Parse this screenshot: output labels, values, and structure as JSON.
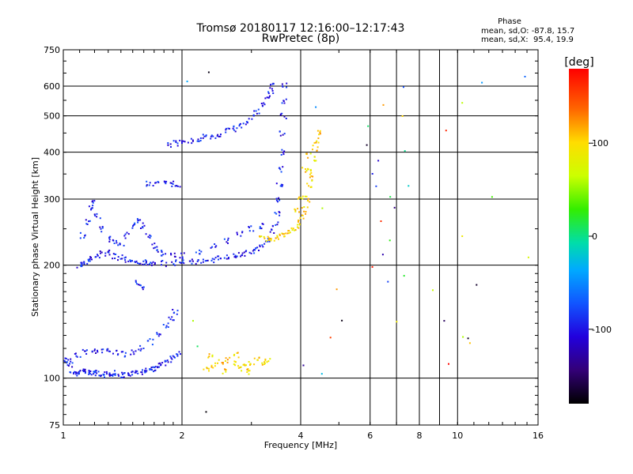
{
  "chart_data": {
    "type": "scatter",
    "title": "Tromsø 20180117 12:16:00–12:17:43",
    "subtitle": "RwPretec (8p)",
    "xlabel": "Frequency [MHz]",
    "ylabel": "Stationary phase Virtual Height [km]",
    "xscale": "log",
    "yscale": "log",
    "xlim": [
      1,
      16
    ],
    "ylim": [
      75,
      750
    ],
    "xticks": [
      1,
      2,
      4,
      6,
      8,
      10,
      16
    ],
    "xtick_labels": [
      "1",
      "2",
      "4",
      "6",
      "8",
      "10",
      "16"
    ],
    "xminor_grid": [
      7,
      9
    ],
    "yticks": [
      75,
      100,
      200,
      300,
      400,
      500,
      600,
      750
    ],
    "ytick_labels": [
      "75",
      "100",
      "200",
      "300",
      "400",
      "500",
      "600",
      "750"
    ],
    "grid": true,
    "phase_stats": {
      "title": "Phase",
      "line_o": "mean, sd,O: -87.8, 15.7",
      "line_x": "mean, sd,X:  95.4, 19.9"
    },
    "colorbar": {
      "label": "[deg]",
      "min": -180,
      "max": 180,
      "ticks": [
        100,
        0,
        -100
      ],
      "tick_labels": [
        "100",
        "0",
        "-100"
      ],
      "position": "right"
    },
    "series": [
      {
        "mode": "O",
        "phase_mean": -87.8,
        "points": [
          [
            1.0,
            112
          ],
          [
            1.03,
            111
          ],
          [
            1.05,
            104
          ],
          [
            1.08,
            103
          ],
          [
            1.1,
            104
          ],
          [
            1.12,
            105
          ],
          [
            1.15,
            103
          ],
          [
            1.18,
            103
          ],
          [
            1.2,
            103
          ],
          [
            1.22,
            104
          ],
          [
            1.25,
            103
          ],
          [
            1.28,
            102
          ],
          [
            1.3,
            103
          ],
          [
            1.33,
            102
          ],
          [
            1.36,
            103
          ],
          [
            1.4,
            102
          ],
          [
            1.44,
            102
          ],
          [
            1.48,
            103
          ],
          [
            1.52,
            103
          ],
          [
            1.56,
            104
          ],
          [
            1.6,
            104
          ],
          [
            1.64,
            105
          ],
          [
            1.68,
            107
          ],
          [
            1.72,
            106
          ],
          [
            1.76,
            108
          ],
          [
            1.8,
            110
          ],
          [
            1.85,
            112
          ],
          [
            1.9,
            114
          ],
          [
            1.95,
            116
          ],
          [
            1.04,
            108
          ],
          [
            1.09,
            115
          ],
          [
            1.14,
            117
          ],
          [
            1.19,
            118
          ],
          [
            1.24,
            119
          ],
          [
            1.3,
            118
          ],
          [
            1.36,
            117
          ],
          [
            1.42,
            116
          ],
          [
            1.5,
            117
          ],
          [
            1.58,
            120
          ],
          [
            1.66,
            125
          ],
          [
            1.74,
            130
          ],
          [
            1.82,
            138
          ],
          [
            1.88,
            145
          ],
          [
            1.92,
            150
          ],
          [
            1.1,
            200
          ],
          [
            1.12,
            202
          ],
          [
            1.15,
            205
          ],
          [
            1.18,
            208
          ],
          [
            1.22,
            212
          ],
          [
            1.26,
            215
          ],
          [
            1.3,
            216
          ],
          [
            1.35,
            212
          ],
          [
            1.4,
            210
          ],
          [
            1.45,
            207
          ],
          [
            1.5,
            205
          ],
          [
            1.55,
            204
          ],
          [
            1.6,
            203
          ],
          [
            1.65,
            202
          ],
          [
            1.7,
            202
          ],
          [
            1.8,
            202
          ],
          [
            1.9,
            203
          ],
          [
            2.0,
            203
          ],
          [
            2.1,
            204
          ],
          [
            2.2,
            205
          ],
          [
            2.3,
            206
          ],
          [
            2.4,
            207
          ],
          [
            2.5,
            208
          ],
          [
            2.6,
            210
          ],
          [
            2.7,
            211
          ],
          [
            2.8,
            213
          ],
          [
            2.9,
            215
          ],
          [
            3.0,
            217
          ],
          [
            3.1,
            220
          ],
          [
            3.2,
            225
          ],
          [
            3.3,
            232
          ],
          [
            3.4,
            245
          ],
          [
            3.45,
            258
          ],
          [
            3.5,
            275
          ],
          [
            3.52,
            300
          ],
          [
            3.54,
            330
          ],
          [
            3.56,
            360
          ],
          [
            3.58,
            400
          ],
          [
            3.6,
            450
          ],
          [
            3.62,
            500
          ],
          [
            3.63,
            550
          ],
          [
            3.64,
            600
          ],
          [
            1.12,
            240
          ],
          [
            1.15,
            260
          ],
          [
            1.18,
            285
          ],
          [
            1.2,
            292
          ],
          [
            1.22,
            270
          ],
          [
            1.25,
            250
          ],
          [
            1.3,
            235
          ],
          [
            1.35,
            230
          ],
          [
            1.4,
            225
          ],
          [
            1.45,
            240
          ],
          [
            1.5,
            255
          ],
          [
            1.55,
            262
          ],
          [
            1.6,
            255
          ],
          [
            1.65,
            240
          ],
          [
            1.7,
            225
          ],
          [
            1.75,
            220
          ],
          [
            1.8,
            215
          ],
          [
            1.9,
            212
          ],
          [
            2.0,
            212
          ],
          [
            2.2,
            218
          ],
          [
            2.4,
            224
          ],
          [
            2.6,
            232
          ],
          [
            2.8,
            242
          ],
          [
            3.0,
            250
          ],
          [
            3.2,
            255
          ],
          [
            1.85,
            420
          ],
          [
            1.92,
            422
          ],
          [
            2.0,
            425
          ],
          [
            2.1,
            430
          ],
          [
            2.2,
            435
          ],
          [
            2.3,
            438
          ],
          [
            2.4,
            440
          ],
          [
            2.5,
            445
          ],
          [
            2.6,
            455
          ],
          [
            2.7,
            462
          ],
          [
            2.8,
            470
          ],
          [
            2.9,
            480
          ],
          [
            3.0,
            495
          ],
          [
            3.1,
            515
          ],
          [
            3.2,
            540
          ],
          [
            3.3,
            560
          ],
          [
            3.35,
            580
          ],
          [
            3.4,
            600
          ],
          [
            1.65,
            330
          ],
          [
            1.72,
            330
          ],
          [
            1.8,
            332
          ],
          [
            1.88,
            330
          ],
          [
            1.95,
            328
          ],
          [
            1.55,
            180
          ],
          [
            1.58,
            175
          ]
        ]
      },
      {
        "mode": "X",
        "phase_mean": 95.4,
        "points": [
          [
            3.2,
            235
          ],
          [
            3.3,
            234
          ],
          [
            3.4,
            236
          ],
          [
            3.5,
            238
          ],
          [
            3.6,
            240
          ],
          [
            3.7,
            243
          ],
          [
            3.8,
            247
          ],
          [
            3.9,
            252
          ],
          [
            4.0,
            260
          ],
          [
            4.05,
            270
          ],
          [
            4.1,
            282
          ],
          [
            4.15,
            300
          ],
          [
            4.2,
            325
          ],
          [
            4.25,
            355
          ],
          [
            4.3,
            385
          ],
          [
            4.35,
            410
          ],
          [
            4.4,
            430
          ],
          [
            4.45,
            450
          ],
          [
            4.1,
            360
          ],
          [
            4.2,
            390
          ],
          [
            4.3,
            340
          ],
          [
            4.0,
            300
          ],
          [
            3.9,
            280
          ],
          [
            2.3,
            106
          ],
          [
            2.4,
            108
          ],
          [
            2.5,
            110
          ],
          [
            2.6,
            112
          ],
          [
            2.7,
            109
          ],
          [
            2.8,
            106
          ],
          [
            2.9,
            107
          ],
          [
            3.0,
            110
          ],
          [
            3.1,
            112
          ],
          [
            3.2,
            109
          ],
          [
            3.3,
            111
          ],
          [
            2.35,
            114
          ],
          [
            2.55,
            104
          ],
          [
            2.75,
            115
          ],
          [
            2.95,
            104
          ]
        ]
      },
      {
        "mode": "noise",
        "points": [
          [
            2.05,
            620
          ],
          [
            2.35,
            650
          ],
          [
            4.3,
            520
          ],
          [
            5.9,
            470
          ],
          [
            6.1,
            350
          ],
          [
            6.4,
            540
          ],
          [
            6.5,
            260
          ],
          [
            6.7,
            230
          ],
          [
            7.2,
            500
          ],
          [
            7.3,
            410
          ],
          [
            7.4,
            330
          ],
          [
            7.3,
            590
          ],
          [
            8.6,
            170
          ],
          [
            9.3,
            140
          ],
          [
            9.4,
            108
          ],
          [
            9.5,
            460
          ],
          [
            10.2,
            550
          ],
          [
            10.4,
            240
          ],
          [
            11.5,
            620
          ],
          [
            12.3,
            305
          ],
          [
            15.0,
            630
          ],
          [
            15.2,
            210
          ],
          [
            6.3,
            380
          ],
          [
            6.2,
            330
          ],
          [
            6.8,
            300
          ],
          [
            7.0,
            280
          ],
          [
            5.8,
            420
          ],
          [
            6.6,
            180
          ],
          [
            5.0,
            170
          ],
          [
            4.8,
            130
          ],
          [
            6.0,
            195
          ],
          [
            10.5,
            130
          ],
          [
            10.6,
            126
          ],
          [
            10.7,
            122
          ],
          [
            11.0,
            175
          ],
          [
            4.1,
            108
          ],
          [
            4.5,
            104
          ],
          [
            6.9,
            140
          ],
          [
            2.1,
            140
          ],
          [
            2.2,
            120
          ],
          [
            2.3,
            82
          ],
          [
            5.1,
            140
          ],
          [
            4.6,
            280
          ],
          [
            6.4,
            210
          ],
          [
            7.2,
            190
          ]
        ]
      }
    ]
  }
}
